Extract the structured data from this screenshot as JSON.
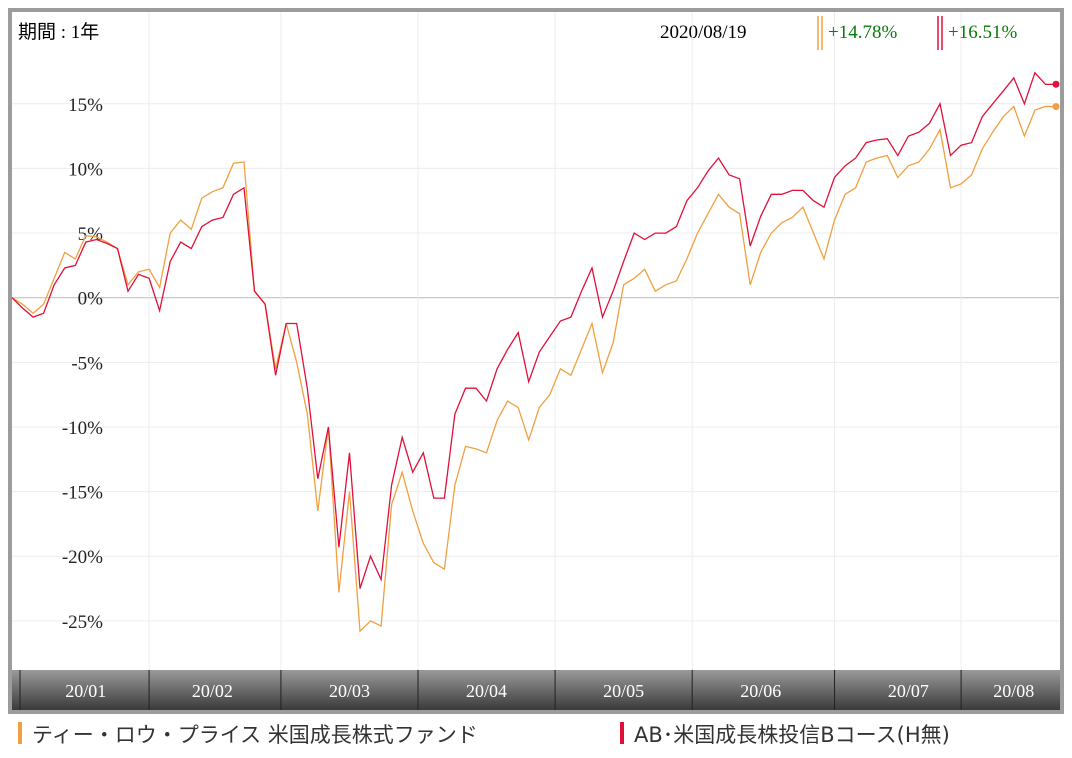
{
  "chart_data": {
    "type": "line",
    "period": "期間 : 1年",
    "date": "2020/08/19",
    "categories": [
      null,
      null,
      null,
      null,
      null,
      null,
      null,
      "20/01",
      null,
      null,
      null,
      null,
      null,
      null,
      null,
      null,
      null,
      null,
      null,
      "20/02",
      null,
      null,
      null,
      null,
      null,
      null,
      null,
      null,
      null,
      null,
      null,
      null,
      "20/03",
      null,
      null,
      null,
      null,
      null,
      null,
      null,
      null,
      null,
      null,
      null,
      null,
      "20/04",
      null,
      null,
      null,
      null,
      null,
      null,
      null,
      null,
      null,
      null,
      null,
      null,
      "20/05",
      null,
      null,
      null,
      null,
      null,
      null,
      null,
      null,
      null,
      null,
      null,
      null,
      "20/06",
      null,
      null,
      null,
      null,
      null,
      null,
      null,
      null,
      null,
      null,
      null,
      null,
      null,
      "20/07",
      null,
      null,
      null,
      null,
      null,
      null,
      null,
      null,
      null,
      "20/08",
      null,
      null,
      null,
      null
    ],
    "series": [
      {
        "name": "ティー・ロウ・プライス 米国成長株式ファンド",
        "color": "#f0a040",
        "latest_label": "+14.78%",
        "values": [
          0,
          -0.5,
          -1.2,
          -0.5,
          1.5,
          3.5,
          3.0,
          4.8,
          4.7,
          4.3,
          3.8,
          1.0,
          2.0,
          2.2,
          0.8,
          5.0,
          6.0,
          5.3,
          7.7,
          8.2,
          8.5,
          10.4,
          10.5,
          0.5,
          -0.5,
          -5.5,
          -2.0,
          -5.0,
          -9,
          -16.5,
          -10,
          -22.8,
          -15,
          -25.8,
          -25,
          -25.4,
          -16,
          -13.5,
          -16.5,
          -19,
          -20.5,
          -21,
          -14.5,
          -11.5,
          -11.7,
          -12,
          -9.5,
          -8.0,
          -8.5,
          -11,
          -8.5,
          -7.5,
          -5.5,
          -6.0,
          -4.0,
          -2.0,
          -5.8,
          -3.5,
          1.0,
          1.5,
          2.2,
          0.5,
          1.0,
          1.3,
          3.0,
          5.0,
          6.5,
          8.0,
          7.0,
          6.5,
          1.0,
          3.5,
          5.0,
          5.8,
          6.2,
          7.0,
          5.0,
          3.0,
          6.0,
          8.0,
          8.5,
          10.5,
          10.8,
          11.0,
          9.3,
          10.2,
          10.5,
          11.5,
          13.0,
          8.5,
          8.8,
          9.5,
          11.5,
          12.8,
          14.0,
          14.8,
          12.5,
          14.5,
          14.8,
          14.78
        ]
      },
      {
        "name": "AB･米国成長株投信Bコース(H無)",
        "color": "#e0103a",
        "latest_label": "+16.51%",
        "values": [
          0,
          -0.8,
          -1.5,
          -1.2,
          1.0,
          2.3,
          2.5,
          4.3,
          4.5,
          4.2,
          3.8,
          0.5,
          1.8,
          1.5,
          -1.0,
          2.8,
          4.3,
          3.8,
          5.5,
          6.0,
          6.2,
          8.0,
          8.5,
          0.5,
          -0.5,
          -6.0,
          -2.0,
          -2.0,
          -7,
          -14,
          -10,
          -19.3,
          -12,
          -22.5,
          -20,
          -21.8,
          -14.5,
          -10.8,
          -13.5,
          -12,
          -15.5,
          -15.5,
          -9.0,
          -7.0,
          -7.0,
          -8.0,
          -5.5,
          -4.0,
          -2.7,
          -6.5,
          -4.2,
          -3.0,
          -1.8,
          -1.5,
          0.5,
          2.3,
          -1.5,
          0.5,
          2.8,
          5.0,
          4.5,
          5.0,
          5.0,
          5.5,
          7.5,
          8.5,
          9.8,
          10.8,
          9.5,
          9.2,
          4.0,
          6.3,
          8.0,
          8.0,
          8.3,
          8.3,
          7.5,
          7.0,
          9.3,
          10.2,
          10.8,
          12.0,
          12.2,
          12.3,
          11.0,
          12.5,
          12.8,
          13.5,
          15.0,
          11.0,
          11.8,
          12.0,
          14.0,
          15.0,
          16.0,
          17.0,
          15.0,
          17.4,
          16.5,
          16.51
        ]
      }
    ],
    "ylim": [
      -28.8,
      22.1
    ],
    "yticks": [
      {
        "value": 15,
        "label": "15%"
      },
      {
        "value": 10,
        "label": "10%"
      },
      {
        "value": 5,
        "label": "5%"
      },
      {
        "value": 0,
        "label": "0%"
      },
      {
        "value": -5,
        "label": "-5%"
      },
      {
        "value": -10,
        "label": "-10%"
      },
      {
        "value": -15,
        "label": "-15%"
      },
      {
        "value": -20,
        "label": "-20%"
      },
      {
        "value": -25,
        "label": "-25%"
      }
    ],
    "grid": true
  }
}
